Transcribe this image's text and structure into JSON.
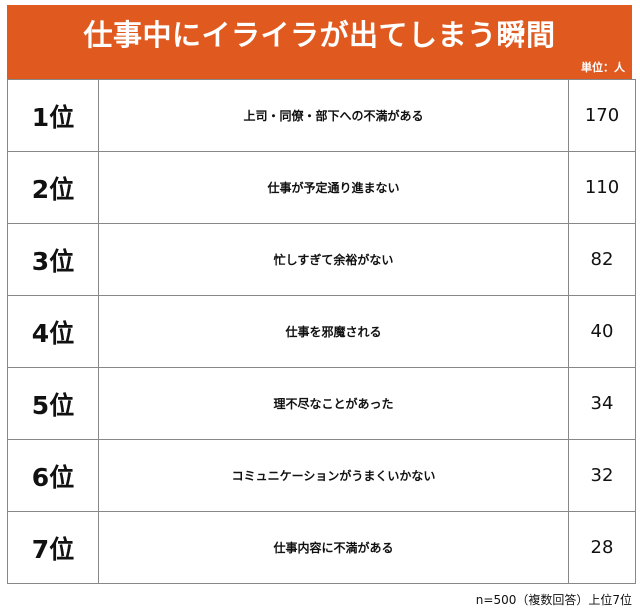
{
  "title": "仕事中にイライラが出てしまう瞬間",
  "unit_label": "単位：人",
  "note": "n=500（複数回答）上位7位",
  "colors": {
    "header": "#e05a20",
    "header_text": "#ffffff",
    "border": "#888888"
  },
  "chart_data": {
    "type": "table",
    "title": "仕事中にイライラが出てしまう瞬間",
    "unit": "単位：人",
    "rows": [
      {
        "rank": "1位",
        "label": "上司・同僚・部下への不満がある",
        "value": 170
      },
      {
        "rank": "2位",
        "label": "仕事が予定通り進まない",
        "value": 110
      },
      {
        "rank": "3位",
        "label": "忙しすぎて余裕がない",
        "value": 82
      },
      {
        "rank": "4位",
        "label": "仕事を邪魔される",
        "value": 40
      },
      {
        "rank": "5位",
        "label": "理不尽なことがあった",
        "value": 34
      },
      {
        "rank": "6位",
        "label": "コミュニケーションがうまくいかない",
        "value": 32
      },
      {
        "rank": "7位",
        "label": "仕事内容に不満がある",
        "value": 28
      }
    ]
  }
}
